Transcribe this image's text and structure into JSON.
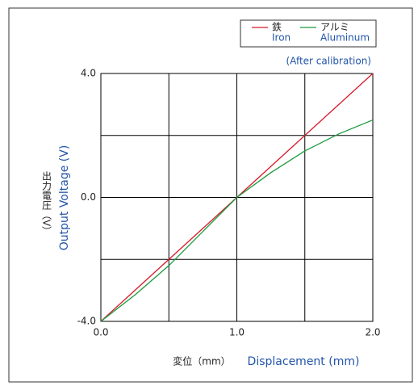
{
  "chart_data": {
    "type": "line",
    "annotation": "(After calibration)",
    "xlabel_ja": "変位（mm）",
    "xlabel": "Displacement (mm)",
    "ylabel_ja": "出力電圧（V）",
    "ylabel": "Output Voltage (V)",
    "x": [
      0,
      0.25,
      0.5,
      0.75,
      1,
      1.25,
      1.5,
      1.75,
      2
    ],
    "series": [
      {
        "name": "鉄",
        "name_en": "Iron",
        "color": "#d7192a",
        "values": [
          -4,
          -3,
          -2,
          -1,
          0,
          1,
          2,
          3,
          4
        ]
      },
      {
        "name": "アルミ",
        "name_en": "Aluminum",
        "color": "#1a9a3c",
        "values": [
          -4,
          -3.15,
          -2.2,
          -1.1,
          0,
          0.8,
          1.5,
          2.05,
          2.5
        ]
      }
    ],
    "xlim": [
      0,
      2
    ],
    "ylim": [
      -4,
      4
    ],
    "xticks": [
      {
        "value": 0,
        "label": "0.0"
      },
      {
        "value": 1,
        "label": "1.0"
      },
      {
        "value": 2,
        "label": "2.0"
      }
    ],
    "yticks": [
      {
        "value": -4,
        "label": "-4.0"
      },
      {
        "value": 0,
        "label": "0.0"
      },
      {
        "value": 4,
        "label": "4.0"
      }
    ],
    "xminor": [
      0.5,
      1.5
    ],
    "yminor": [
      -2,
      2
    ],
    "grid": true
  }
}
